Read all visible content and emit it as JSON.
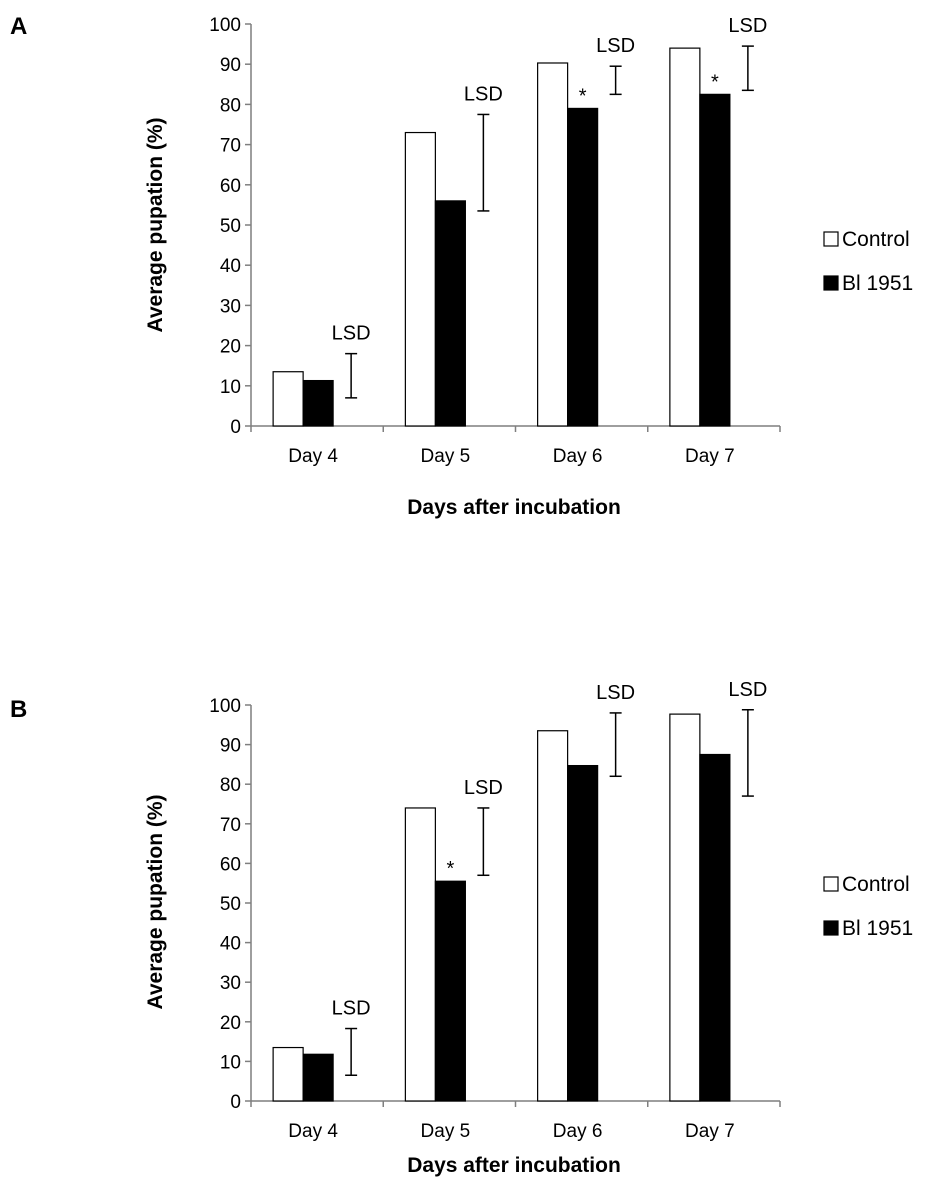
{
  "chart_data": [
    {
      "type": "bar",
      "panel_label": "A",
      "categories": [
        "Day 4",
        "Day 5",
        "Day 6",
        "Day 7"
      ],
      "series": [
        {
          "name": "Control",
          "values": [
            13.5,
            73,
            90.3,
            94
          ],
          "color": "#ffffff"
        },
        {
          "name": "Bl 1951",
          "values": [
            11.3,
            56,
            79,
            82.5
          ],
          "color": "#000000"
        }
      ],
      "lsd_label": "LSD",
      "lsd_intervals": [
        [
          7,
          18
        ],
        [
          53.5,
          77.5
        ],
        [
          82.5,
          89.5
        ],
        [
          83.5,
          94.5
        ]
      ],
      "significance": [
        "",
        "",
        "*",
        "*"
      ],
      "xlabel": "Days after incubation",
      "ylabel": "Average pupation (%)",
      "ylim": [
        0,
        100
      ],
      "yticks": [
        "0",
        "10",
        "20",
        "30",
        "40",
        "50",
        "60",
        "70",
        "80",
        "90",
        "100"
      ],
      "grid": false,
      "legend_position": "right"
    },
    {
      "type": "bar",
      "panel_label": "B",
      "categories": [
        "Day 4",
        "Day 5",
        "Day 6",
        "Day 7"
      ],
      "series": [
        {
          "name": "Control",
          "values": [
            13.5,
            74,
            93.5,
            97.7
          ],
          "color": "#ffffff"
        },
        {
          "name": "Bl 1951",
          "values": [
            11.8,
            55.5,
            84.7,
            87.5
          ],
          "color": "#000000"
        }
      ],
      "lsd_label": "LSD",
      "lsd_intervals": [
        [
          6.5,
          18.3
        ],
        [
          57,
          74
        ],
        [
          82,
          98
        ],
        [
          77,
          98.8
        ]
      ],
      "significance": [
        "",
        "*",
        "",
        ""
      ],
      "xlabel": "Days after incubation",
      "ylabel": "Average pupation (%)",
      "ylim": [
        0,
        100
      ],
      "yticks": [
        "0",
        "10",
        "20",
        "30",
        "40",
        "50",
        "60",
        "70",
        "80",
        "90",
        "100"
      ],
      "grid": false,
      "legend_position": "right"
    }
  ]
}
